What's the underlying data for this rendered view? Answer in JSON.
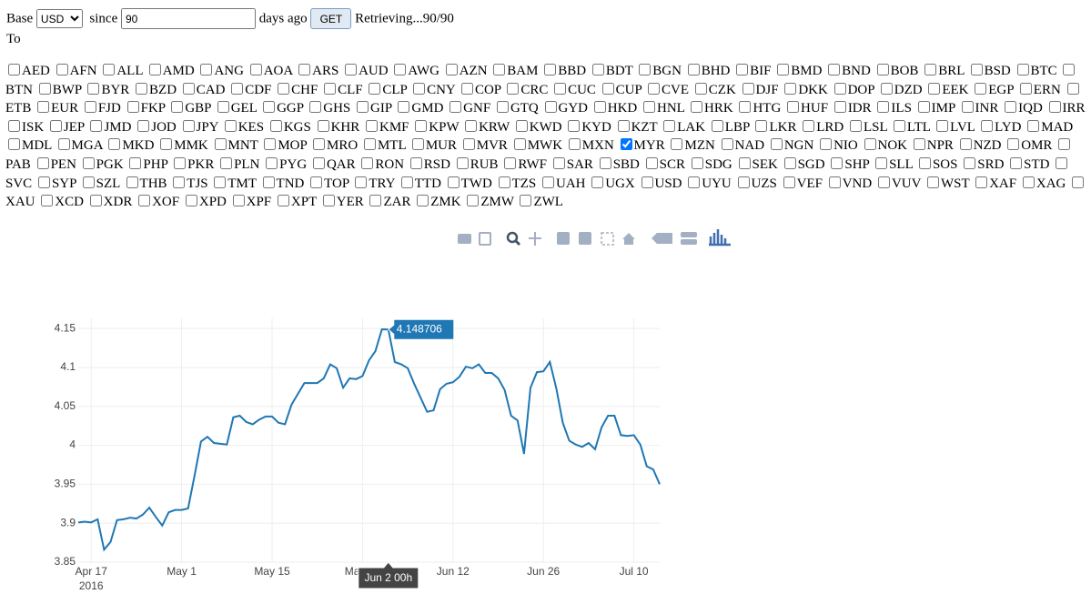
{
  "form": {
    "base_label": "Base",
    "base": "USD",
    "since_label": "since",
    "days": "90",
    "days_label": "days ago",
    "button": "GET",
    "status": "Retrieving...90/90",
    "to_label": "To"
  },
  "currencies": [
    "AED",
    "AFN",
    "ALL",
    "AMD",
    "ANG",
    "AOA",
    "ARS",
    "AUD",
    "AWG",
    "AZN",
    "BAM",
    "BBD",
    "BDT",
    "BGN",
    "BHD",
    "BIF",
    "BMD",
    "BND",
    "BOB",
    "BRL",
    "BSD",
    "BTC",
    "BTN",
    "BWP",
    "BYR",
    "BZD",
    "CAD",
    "CDF",
    "CHF",
    "CLF",
    "CLP",
    "CNY",
    "COP",
    "CRC",
    "CUC",
    "CUP",
    "CVE",
    "CZK",
    "DJF",
    "DKK",
    "DOP",
    "DZD",
    "EEK",
    "EGP",
    "ERN",
    "ETB",
    "EUR",
    "FJD",
    "FKP",
    "GBP",
    "GEL",
    "GGP",
    "GHS",
    "GIP",
    "GMD",
    "GNF",
    "GTQ",
    "GYD",
    "HKD",
    "HNL",
    "HRK",
    "HTG",
    "HUF",
    "IDR",
    "ILS",
    "IMP",
    "INR",
    "IQD",
    "IRR",
    "ISK",
    "JEP",
    "JMD",
    "JOD",
    "JPY",
    "KES",
    "KGS",
    "KHR",
    "KMF",
    "KPW",
    "KRW",
    "KWD",
    "KYD",
    "KZT",
    "LAK",
    "LBP",
    "LKR",
    "LRD",
    "LSL",
    "LTL",
    "LVL",
    "LYD",
    "MAD",
    "MDL",
    "MGA",
    "MKD",
    "MMK",
    "MNT",
    "MOP",
    "MRO",
    "MTL",
    "MUR",
    "MVR",
    "MWK",
    "MXN",
    "MYR",
    "MZN",
    "NAD",
    "NGN",
    "NIO",
    "NOK",
    "NPR",
    "NZD",
    "OMR",
    "PAB",
    "PEN",
    "PGK",
    "PHP",
    "PKR",
    "PLN",
    "PYG",
    "QAR",
    "RON",
    "RSD",
    "RUB",
    "RWF",
    "SAR",
    "SBD",
    "SCR",
    "SDG",
    "SEK",
    "SGD",
    "SHP",
    "SLL",
    "SOS",
    "SRD",
    "STD",
    "SVC",
    "SYP",
    "SZL",
    "THB",
    "TJS",
    "TMT",
    "TND",
    "TOP",
    "TRY",
    "TTD",
    "TWD",
    "TZS",
    "UAH",
    "UGX",
    "USD",
    "UYU",
    "UZS",
    "VEF",
    "VND",
    "VUV",
    "WST",
    "XAF",
    "XAG",
    "XAU",
    "XCD",
    "XDR",
    "XOF",
    "XPD",
    "XPF",
    "XPT",
    "YER",
    "ZAR",
    "ZMK",
    "ZMW",
    "ZWL"
  ],
  "selected": [
    "MYR"
  ],
  "chart_data": {
    "type": "line",
    "x": [
      "2016-04-15",
      "2016-04-16",
      "2016-04-17",
      "2016-04-18",
      "2016-04-19",
      "2016-04-20",
      "2016-04-21",
      "2016-04-22",
      "2016-04-23",
      "2016-04-24",
      "2016-04-25",
      "2016-04-26",
      "2016-04-27",
      "2016-04-28",
      "2016-04-29",
      "2016-04-30",
      "2016-05-01",
      "2016-05-02",
      "2016-05-03",
      "2016-05-04",
      "2016-05-05",
      "2016-05-06",
      "2016-05-07",
      "2016-05-08",
      "2016-05-09",
      "2016-05-10",
      "2016-05-11",
      "2016-05-12",
      "2016-05-13",
      "2016-05-14",
      "2016-05-15",
      "2016-05-16",
      "2016-05-17",
      "2016-05-18",
      "2016-05-19",
      "2016-05-20",
      "2016-05-21",
      "2016-05-22",
      "2016-05-23",
      "2016-05-24",
      "2016-05-25",
      "2016-05-26",
      "2016-05-27",
      "2016-05-28",
      "2016-05-29",
      "2016-05-30",
      "2016-05-31",
      "2016-06-01",
      "2016-06-02",
      "2016-06-03",
      "2016-06-04",
      "2016-06-05",
      "2016-06-06",
      "2016-06-07",
      "2016-06-08",
      "2016-06-09",
      "2016-06-10",
      "2016-06-11",
      "2016-06-12",
      "2016-06-13",
      "2016-06-14",
      "2016-06-15",
      "2016-06-16",
      "2016-06-17",
      "2016-06-18",
      "2016-06-19",
      "2016-06-20",
      "2016-06-21",
      "2016-06-22",
      "2016-06-23",
      "2016-06-24",
      "2016-06-25",
      "2016-06-26",
      "2016-06-27",
      "2016-06-28",
      "2016-06-29",
      "2016-06-30",
      "2016-07-01",
      "2016-07-02",
      "2016-07-03",
      "2016-07-04",
      "2016-07-05",
      "2016-07-06",
      "2016-07-07",
      "2016-07-08",
      "2016-07-09",
      "2016-07-10",
      "2016-07-11",
      "2016-07-12",
      "2016-07-13",
      "2016-07-14"
    ],
    "series": [
      {
        "name": "MYR",
        "color": "#1f77b4",
        "values": [
          3.901,
          3.902,
          3.901,
          3.905,
          3.866,
          3.876,
          3.904,
          3.905,
          3.907,
          3.906,
          3.911,
          3.92,
          3.908,
          3.897,
          3.914,
          3.917,
          3.917,
          3.919,
          3.961,
          4.005,
          4.011,
          4.003,
          4.002,
          4.001,
          4.036,
          4.038,
          4.03,
          4.027,
          4.033,
          4.037,
          4.037,
          4.029,
          4.027,
          4.052,
          4.066,
          4.08,
          4.08,
          4.08,
          4.086,
          4.104,
          4.099,
          4.074,
          4.086,
          4.085,
          4.089,
          4.109,
          4.121,
          4.149,
          4.148706,
          4.107,
          4.104,
          4.099,
          4.079,
          4.061,
          4.043,
          4.045,
          4.072,
          4.079,
          4.081,
          4.088,
          4.101,
          4.099,
          4.104,
          4.093,
          4.093,
          4.086,
          4.071,
          4.038,
          4.032,
          3.989,
          4.074,
          4.094,
          4.095,
          4.107,
          4.073,
          4.029,
          4.006,
          4.001,
          3.998,
          4.003,
          3.995,
          4.023,
          4.038,
          4.038,
          4.013,
          4.012,
          4.013,
          4.001,
          3.973,
          3.969,
          3.95
        ]
      }
    ],
    "xlim": [
      "2016-04-15",
      "2016-07-14"
    ],
    "xticks": [
      {
        "value": "2016-04-17",
        "label": "Apr 17",
        "year": "2016"
      },
      {
        "value": "2016-05-01",
        "label": "May 1"
      },
      {
        "value": "2016-05-15",
        "label": "May 15"
      },
      {
        "value": "2016-05-29",
        "label": "May 29"
      },
      {
        "value": "2016-06-12",
        "label": "Jun 12"
      },
      {
        "value": "2016-06-26",
        "label": "Jun 26"
      },
      {
        "value": "2016-07-10",
        "label": "Jul 10"
      }
    ],
    "ylim": [
      3.85,
      4.163
    ],
    "yticks": [
      3.85,
      3.9,
      3.95,
      4,
      4.05,
      4.1,
      4.15
    ],
    "grid": true,
    "tooltip": {
      "x": "2016-06-02",
      "text": "Jun 2 00h"
    }
  }
}
